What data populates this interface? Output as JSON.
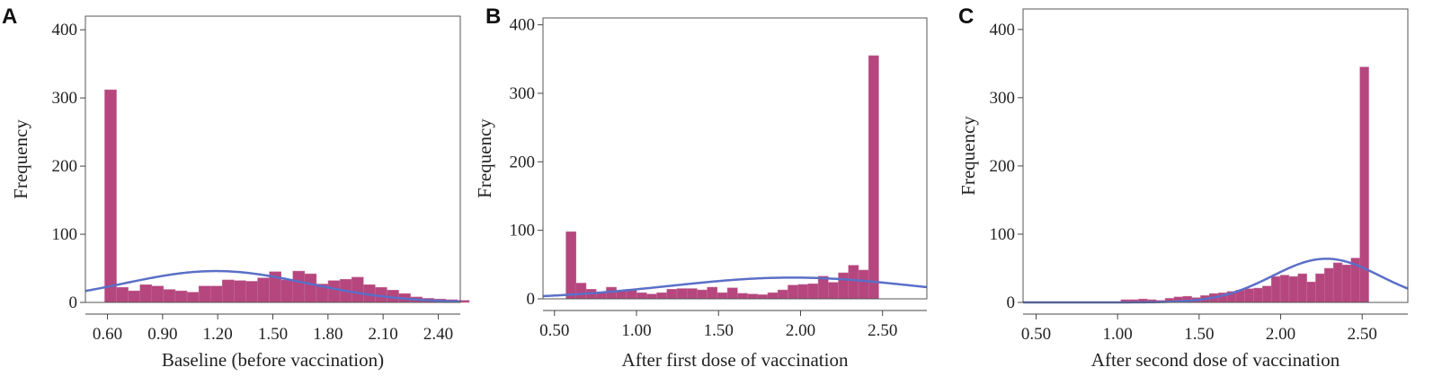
{
  "chart_data": [
    {
      "type": "bar",
      "panel_label": "A",
      "xlabel": "Baseline (before vaccination)",
      "ylabel": "Frequency",
      "xlim": [
        0.48,
        2.52
      ],
      "ylim": [
        0,
        420
      ],
      "xticks": [
        0.6,
        0.9,
        1.2,
        1.5,
        1.8,
        2.1,
        2.4
      ],
      "xtick_labels": [
        "0.60",
        "0.90",
        "1.20",
        "1.50",
        "1.80",
        "2.10",
        "2.40"
      ],
      "yticks": [
        0,
        100,
        200,
        300,
        400
      ],
      "ytick_labels": [
        "0",
        "100",
        "200",
        "300",
        "400"
      ],
      "bin_start": 0.585,
      "bin_width": 0.064,
      "values": [
        312,
        22,
        17,
        26,
        24,
        19,
        17,
        15,
        24,
        24,
        33,
        32,
        31,
        36,
        45,
        33,
        46,
        42,
        27,
        32,
        34,
        37,
        26,
        22,
        18,
        13,
        8,
        6,
        5,
        4,
        3
      ],
      "curve": {
        "type": "normal",
        "mean": 1.19,
        "sd": 0.5,
        "peak": 46
      },
      "grid": false
    },
    {
      "type": "bar",
      "panel_label": "B",
      "xlabel": "After first dose of vaccination",
      "ylabel": "Frequency",
      "xlim": [
        0.43,
        2.77
      ],
      "ylim": [
        0,
        410
      ],
      "xticks": [
        0.5,
        1.0,
        1.5,
        2.0,
        2.5
      ],
      "xtick_labels": [
        "0.50",
        "1.00",
        "1.50",
        "2.00",
        "2.50"
      ],
      "yticks": [
        0,
        100,
        200,
        300,
        400
      ],
      "ytick_labels": [
        "0",
        "100",
        "200",
        "300",
        "400"
      ],
      "bin_start": 0.57,
      "bin_width": 0.0615,
      "values": [
        98,
        23,
        14,
        10,
        17,
        12,
        14,
        9,
        7,
        9,
        14,
        15,
        15,
        13,
        17,
        9,
        16,
        8,
        7,
        6,
        9,
        13,
        20,
        21,
        22,
        33,
        24,
        38,
        49,
        42,
        355
      ],
      "curve": {
        "type": "normal",
        "mean": 1.95,
        "sd": 0.75,
        "peak": 31
      },
      "grid": false
    },
    {
      "type": "bar",
      "panel_label": "C",
      "xlabel": "After second dose of vaccination",
      "ylabel": "Frequency",
      "xlim": [
        0.42,
        2.78
      ],
      "ylim": [
        0,
        430
      ],
      "xticks": [
        0.5,
        1.0,
        1.5,
        2.0,
        2.5
      ],
      "xtick_labels": [
        "0.50",
        "1.00",
        "1.50",
        "2.00",
        "2.50"
      ],
      "yticks": [
        0,
        100,
        200,
        300,
        400
      ],
      "ytick_labels": [
        "0",
        "100",
        "200",
        "300",
        "400"
      ],
      "bin_start": 1.02,
      "bin_width": 0.0543,
      "values": [
        4,
        4,
        5,
        4,
        3,
        6,
        8,
        9,
        7,
        10,
        13,
        14,
        16,
        18,
        20,
        21,
        24,
        38,
        40,
        38,
        42,
        30,
        42,
        50,
        58,
        55,
        65,
        345
      ],
      "curve": {
        "type": "normal",
        "mean": 2.28,
        "sd": 0.33,
        "peak": 64
      },
      "grid": false
    }
  ]
}
